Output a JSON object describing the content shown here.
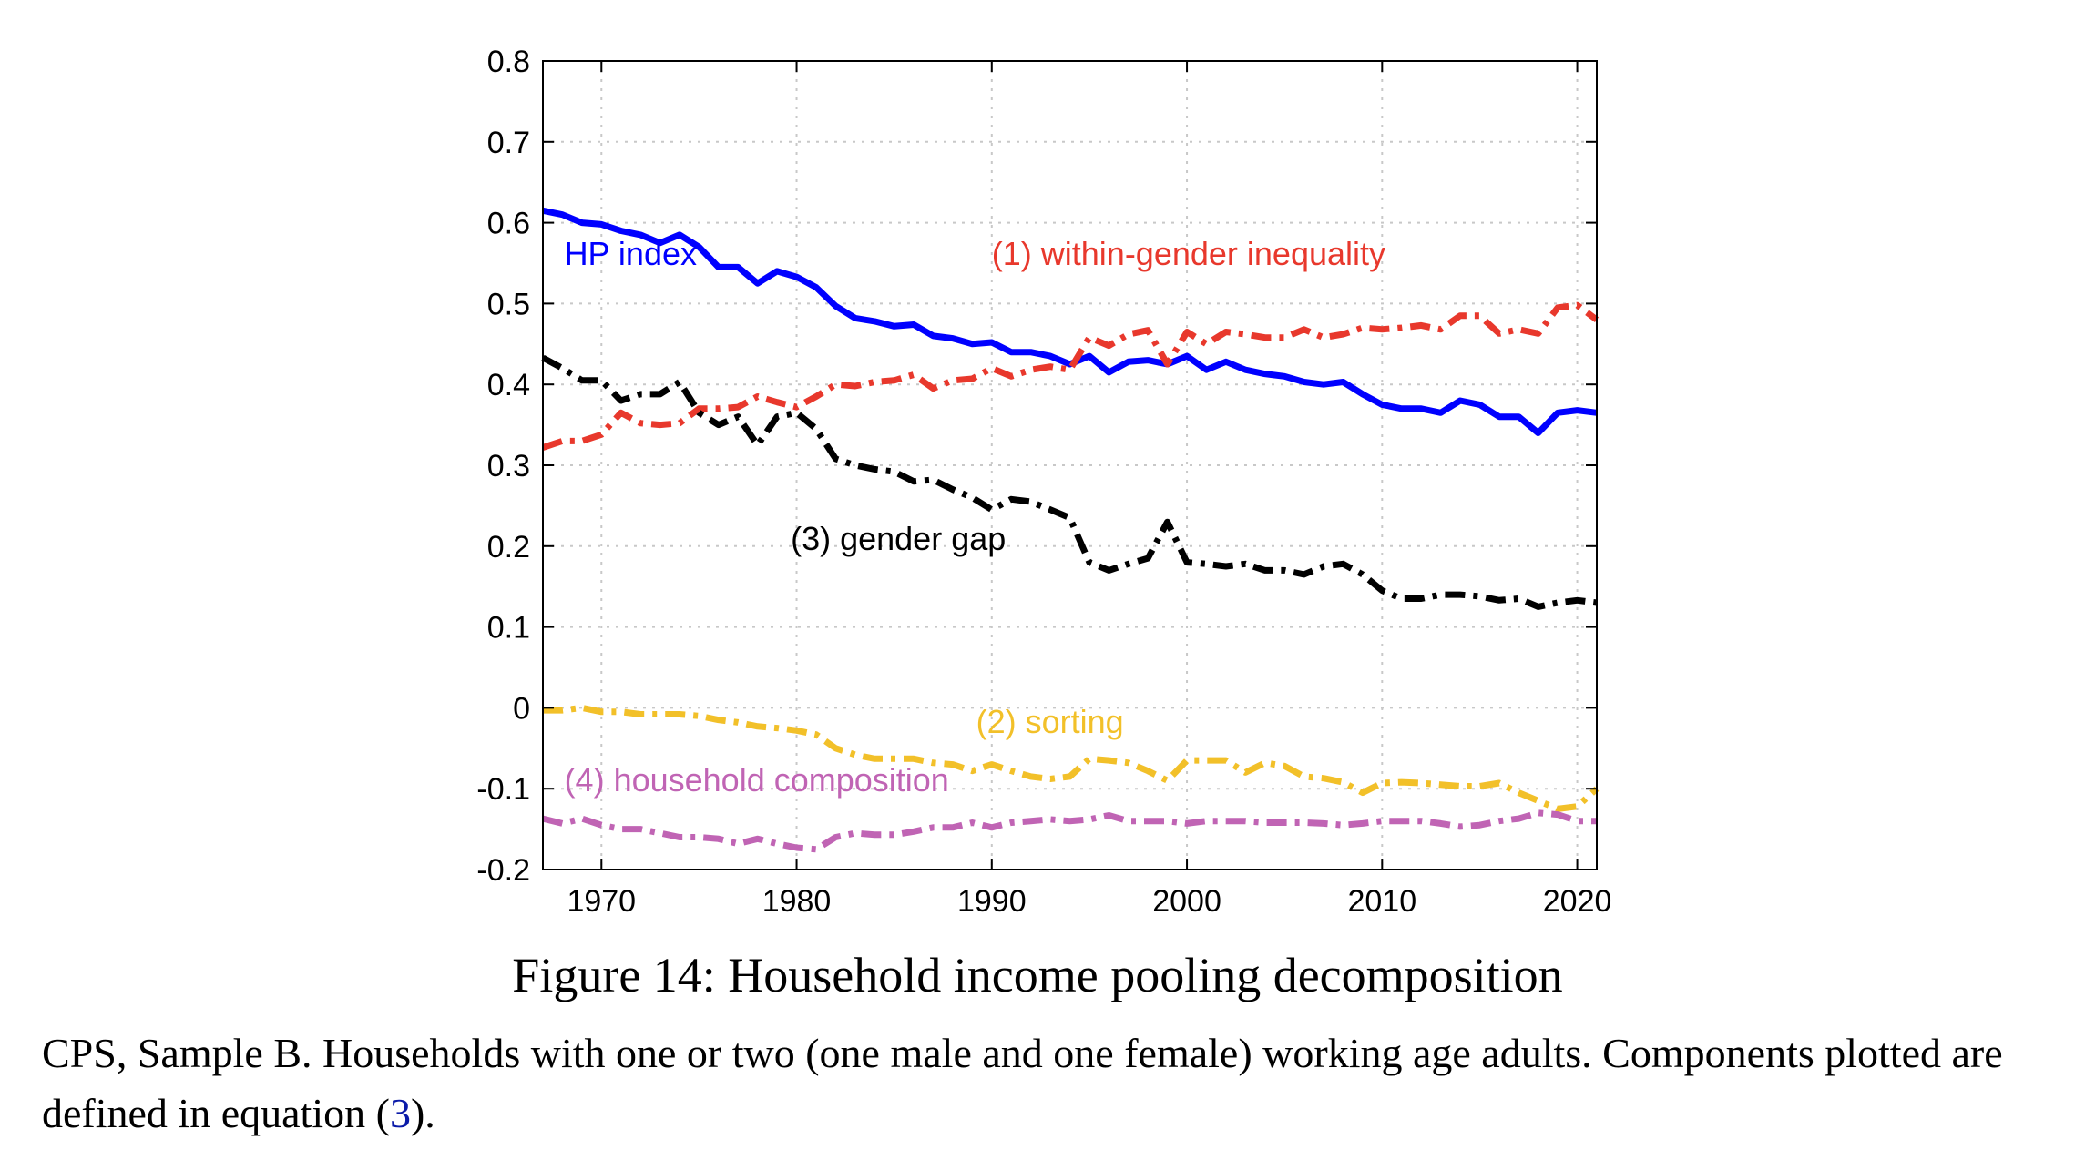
{
  "figure": {
    "title": "Figure 14: Household income pooling decomposition",
    "caption_before": "CPS, Sample B. Households with one or two (one male and one female) working age adults. Components plotted are defined in equation (",
    "caption_ref": "3",
    "caption_after": ")."
  },
  "chart_data": {
    "type": "line",
    "title": "",
    "xlabel": "",
    "ylabel": "",
    "xlim": [
      1967,
      2021
    ],
    "ylim": [
      -0.2,
      0.8
    ],
    "x_ticks": [
      1970,
      1980,
      1990,
      2000,
      2010,
      2020
    ],
    "y_ticks": [
      -0.2,
      -0.1,
      0,
      0.1,
      0.2,
      0.3,
      0.4,
      0.5,
      0.6,
      0.7,
      0.8
    ],
    "y_tick_labels": [
      "-0.2",
      "-0.1",
      "0",
      "0.1",
      "0.2",
      "0.3",
      "0.4",
      "0.5",
      "0.6",
      "0.7",
      "0.8"
    ],
    "grid": true,
    "x": [
      1967,
      1968,
      1969,
      1970,
      1971,
      1972,
      1973,
      1974,
      1975,
      1976,
      1977,
      1978,
      1979,
      1980,
      1981,
      1982,
      1983,
      1984,
      1985,
      1986,
      1987,
      1988,
      1989,
      1990,
      1991,
      1992,
      1993,
      1994,
      1995,
      1996,
      1997,
      1998,
      1999,
      2000,
      2001,
      2002,
      2003,
      2004,
      2005,
      2006,
      2007,
      2008,
      2009,
      2010,
      2011,
      2012,
      2013,
      2014,
      2015,
      2016,
      2017,
      2018,
      2019,
      2020,
      2021
    ],
    "series": [
      {
        "name": "HP index",
        "color": "#0000ff",
        "style": "solid",
        "values": [
          0.615,
          0.61,
          0.6,
          0.598,
          0.59,
          0.585,
          0.575,
          0.585,
          0.57,
          0.545,
          0.545,
          0.525,
          0.54,
          0.533,
          0.52,
          0.497,
          0.482,
          0.478,
          0.472,
          0.474,
          0.46,
          0.457,
          0.45,
          0.452,
          0.44,
          0.44,
          0.435,
          0.425,
          0.435,
          0.415,
          0.428,
          0.43,
          0.425,
          0.435,
          0.418,
          0.428,
          0.418,
          0.413,
          0.41,
          0.403,
          0.4,
          0.403,
          0.388,
          0.375,
          0.37,
          0.37,
          0.365,
          0.38,
          0.375,
          0.36,
          0.36,
          0.34,
          0.365,
          0.368,
          0.365
        ]
      },
      {
        "name": "(1) within-gender inequality",
        "color": "#e8382c",
        "style": "dashdot",
        "values": [
          0.322,
          0.33,
          0.33,
          0.338,
          0.365,
          0.352,
          0.35,
          0.352,
          0.37,
          0.37,
          0.372,
          0.385,
          0.378,
          0.372,
          0.385,
          0.4,
          0.398,
          0.403,
          0.405,
          0.412,
          0.395,
          0.405,
          0.407,
          0.42,
          0.41,
          0.418,
          0.422,
          0.418,
          0.458,
          0.448,
          0.462,
          0.467,
          0.425,
          0.465,
          0.45,
          0.465,
          0.462,
          0.458,
          0.458,
          0.468,
          0.458,
          0.462,
          0.47,
          0.468,
          0.47,
          0.473,
          0.468,
          0.485,
          0.485,
          0.463,
          0.468,
          0.463,
          0.495,
          0.498,
          0.48
        ]
      },
      {
        "name": "(3) gender gap",
        "color": "#000000",
        "style": "dashdot",
        "values": [
          0.433,
          0.42,
          0.405,
          0.405,
          0.38,
          0.388,
          0.388,
          0.403,
          0.365,
          0.35,
          0.36,
          0.325,
          0.36,
          0.365,
          0.345,
          0.308,
          0.3,
          0.295,
          0.292,
          0.28,
          0.282,
          0.27,
          0.26,
          0.245,
          0.258,
          0.255,
          0.245,
          0.235,
          0.18,
          0.17,
          0.178,
          0.185,
          0.23,
          0.18,
          0.178,
          0.175,
          0.178,
          0.17,
          0.17,
          0.165,
          0.175,
          0.178,
          0.165,
          0.145,
          0.135,
          0.135,
          0.14,
          0.14,
          0.138,
          0.133,
          0.135,
          0.125,
          0.13,
          0.133,
          0.13
        ]
      },
      {
        "name": "(2) sorting",
        "color": "#f2c029",
        "style": "dashdot",
        "values": [
          -0.003,
          -0.003,
          0.0,
          -0.005,
          -0.005,
          -0.008,
          -0.008,
          -0.008,
          -0.01,
          -0.015,
          -0.018,
          -0.023,
          -0.025,
          -0.028,
          -0.033,
          -0.05,
          -0.058,
          -0.063,
          -0.063,
          -0.063,
          -0.068,
          -0.07,
          -0.078,
          -0.07,
          -0.078,
          -0.085,
          -0.088,
          -0.085,
          -0.063,
          -0.065,
          -0.068,
          -0.078,
          -0.09,
          -0.065,
          -0.065,
          -0.065,
          -0.08,
          -0.068,
          -0.072,
          -0.085,
          -0.087,
          -0.092,
          -0.105,
          -0.093,
          -0.092,
          -0.093,
          -0.095,
          -0.097,
          -0.097,
          -0.093,
          -0.105,
          -0.115,
          -0.125,
          -0.122,
          -0.1
        ]
      },
      {
        "name": "(4) household composition",
        "color": "#c064b4",
        "style": "dashdot",
        "values": [
          -0.137,
          -0.143,
          -0.137,
          -0.145,
          -0.15,
          -0.15,
          -0.155,
          -0.16,
          -0.16,
          -0.162,
          -0.168,
          -0.162,
          -0.168,
          -0.173,
          -0.175,
          -0.16,
          -0.155,
          -0.157,
          -0.157,
          -0.153,
          -0.148,
          -0.148,
          -0.142,
          -0.148,
          -0.142,
          -0.14,
          -0.138,
          -0.14,
          -0.138,
          -0.133,
          -0.14,
          -0.14,
          -0.14,
          -0.143,
          -0.14,
          -0.14,
          -0.14,
          -0.142,
          -0.142,
          -0.142,
          -0.143,
          -0.145,
          -0.143,
          -0.14,
          -0.14,
          -0.14,
          -0.143,
          -0.147,
          -0.145,
          -0.14,
          -0.137,
          -0.13,
          -0.132,
          -0.14,
          -0.14
        ]
      }
    ],
    "annotations": [
      {
        "series": "HP index",
        "text": "HP index",
        "x": 1968.1,
        "y": 0.548,
        "color": "#0000ff"
      },
      {
        "series": "(1) within-gender inequality",
        "text": "(1) within-gender inequality",
        "x": 1990.0,
        "y": 0.548,
        "color": "#e8382c"
      },
      {
        "series": "(3) gender gap",
        "text": "(3) gender gap",
        "x": 1979.7,
        "y": 0.195,
        "color": "#000000"
      },
      {
        "series": "(2) sorting",
        "text": "(2) sorting",
        "x": 1989.2,
        "y": -0.031,
        "color": "#f2c029"
      },
      {
        "series": "(4) household composition",
        "text": "(4) household composition",
        "x": 1968.1,
        "y": -0.103,
        "color": "#c064b4"
      }
    ]
  }
}
